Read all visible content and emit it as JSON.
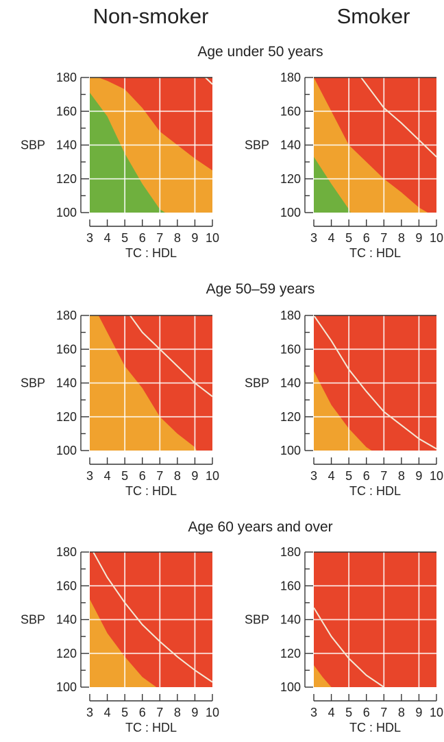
{
  "headers": {
    "non_smoker": "Non-smoker",
    "smoker": "Smoker"
  },
  "colors": {
    "green": "#6fb03e",
    "orange": "#f0a22e",
    "red": "#e8452a"
  },
  "chart_data": {
    "type": "heatmap",
    "description_axes": {
      "xlabel": "TC : HDL",
      "ylabel": "SBP",
      "xticks": [
        3,
        4,
        5,
        6,
        7,
        8,
        9,
        10
      ],
      "yticks": [
        100,
        120,
        140,
        160,
        180
      ],
      "xlim": [
        3,
        10
      ],
      "ylim": [
        100,
        180
      ],
      "grid": true
    },
    "sections": [
      {
        "title": "Age under 50 years",
        "panels": [
          {
            "group": "Non-smoker",
            "green_boundary": [
              [
                3,
                171
              ],
              [
                4,
                157
              ],
              [
                5,
                135
              ],
              [
                6,
                117
              ],
              [
                7,
                102
              ],
              [
                7.3,
                100
              ]
            ],
            "orange_boundary": [
              [
                3.5,
                180
              ],
              [
                4,
                178
              ],
              [
                5,
                173
              ],
              [
                6,
                162
              ],
              [
                7,
                148
              ],
              [
                8,
                140
              ],
              [
                9,
                132
              ],
              [
                10,
                125
              ]
            ],
            "iso_line": [
              [
                9.6,
                180
              ],
              [
                10,
                176
              ]
            ]
          },
          {
            "group": "Smoker",
            "green_boundary": [
              [
                3,
                133
              ],
              [
                4,
                117
              ],
              [
                5,
                102
              ],
              [
                5.1,
                100
              ]
            ],
            "orange_boundary": [
              [
                3,
                180
              ],
              [
                4,
                160
              ],
              [
                5,
                140
              ],
              [
                6,
                130
              ],
              [
                7,
                120
              ],
              [
                8,
                112
              ],
              [
                9,
                103
              ],
              [
                9.5,
                100
              ]
            ],
            "iso_line": [
              [
                5.7,
                180
              ],
              [
                7,
                162
              ],
              [
                8,
                153
              ],
              [
                9,
                143
              ],
              [
                10,
                133
              ]
            ]
          }
        ]
      },
      {
        "title": "Age 50–59 years",
        "panels": [
          {
            "group": "Non-smoker",
            "orange_boundary": [
              [
                3.5,
                180
              ],
              [
                4,
                170
              ],
              [
                5,
                150
              ],
              [
                6,
                137
              ],
              [
                7,
                120
              ],
              [
                8,
                110
              ],
              [
                9,
                102
              ],
              [
                9.1,
                100
              ]
            ],
            "iso_line": [
              [
                5.3,
                180
              ],
              [
                6,
                170
              ],
              [
                7,
                160
              ],
              [
                8,
                150
              ],
              [
                9,
                140
              ],
              [
                10,
                132
              ]
            ]
          },
          {
            "group": "Smoker",
            "orange_boundary": [
              [
                3,
                147
              ],
              [
                4,
                127
              ],
              [
                5,
                113
              ],
              [
                6,
                102
              ],
              [
                6.3,
                100
              ]
            ],
            "iso_line": [
              [
                3,
                180
              ],
              [
                4,
                165
              ],
              [
                5,
                148
              ],
              [
                6,
                135
              ],
              [
                7,
                123
              ],
              [
                8,
                115
              ],
              [
                9,
                107
              ],
              [
                10,
                101
              ]
            ]
          }
        ]
      },
      {
        "title": "Age 60 years and over",
        "panels": [
          {
            "group": "Non-smoker",
            "orange_boundary": [
              [
                3,
                152
              ],
              [
                4,
                132
              ],
              [
                5,
                118
              ],
              [
                6,
                106
              ],
              [
                6.8,
                100
              ]
            ],
            "iso_line": [
              [
                3.2,
                180
              ],
              [
                4,
                165
              ],
              [
                5,
                150
              ],
              [
                6,
                137
              ],
              [
                7,
                127
              ],
              [
                8,
                118
              ],
              [
                9,
                110
              ],
              [
                10,
                103
              ]
            ]
          },
          {
            "group": "Smoker",
            "orange_boundary": [
              [
                3,
                113
              ],
              [
                3.5,
                106
              ],
              [
                4,
                100
              ]
            ],
            "iso_line": [
              [
                3,
                147
              ],
              [
                4,
                130
              ],
              [
                5,
                117
              ],
              [
                6,
                107
              ],
              [
                7,
                100
              ]
            ]
          }
        ]
      }
    ]
  }
}
